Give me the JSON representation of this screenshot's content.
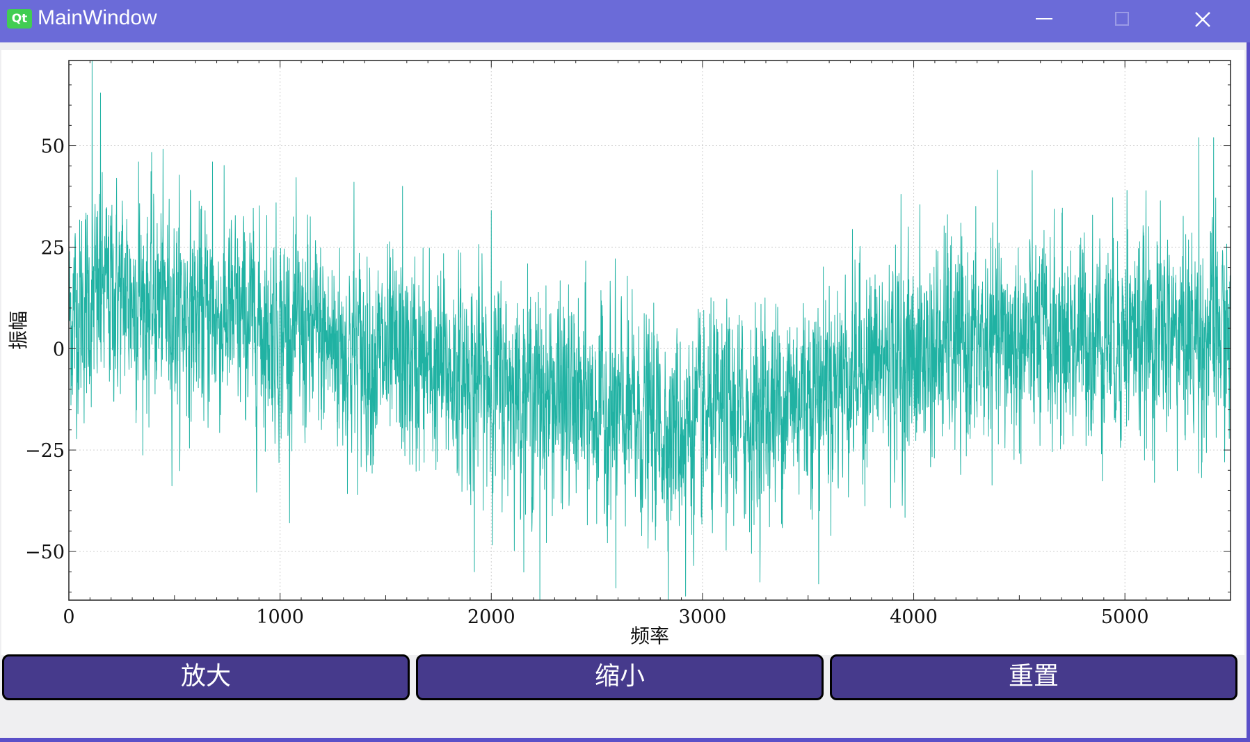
{
  "window": {
    "title": "MainWindow",
    "logo_text": "Qt"
  },
  "buttons": {
    "zoom_in": "放大",
    "zoom_out": "缩小",
    "reset": "重置"
  },
  "colors": {
    "titlebar": "#6b6bd8",
    "line": "#20b2a3",
    "button_bg": "#463a8c",
    "qt_green": "#41cd52"
  },
  "chart_data": {
    "type": "line",
    "xlabel": "频率",
    "ylabel": "振幅",
    "xlim": [
      0,
      5500
    ],
    "ylim": [
      -62,
      71
    ],
    "xticks": [
      0,
      1000,
      2000,
      3000,
      4000,
      5000
    ],
    "yticks": [
      50,
      25,
      0,
      -25,
      -50
    ],
    "ytick_labels": [
      "50",
      "25",
      "0",
      "−25",
      "−50"
    ],
    "grid": true,
    "series": [
      {
        "color": "#20b2a3",
        "n_points": 5500,
        "trend_x": [
          0,
          200,
          500,
          1000,
          1500,
          2000,
          2500,
          2850,
          3200,
          3500,
          3800,
          4200,
          4600,
          5000,
          5500
        ],
        "trend_y": [
          8,
          14,
          10,
          5,
          -3,
          -8,
          -15,
          -20,
          -17,
          -10,
          -4,
          0,
          2,
          4,
          3
        ],
        "noise_std": 13,
        "peaks": [
          {
            "x": 110,
            "y": 71
          },
          {
            "x": 150,
            "y": 63
          },
          {
            "x": 330,
            "y": 46
          },
          {
            "x": 680,
            "y": 46
          },
          {
            "x": 1350,
            "y": 41
          },
          {
            "x": 1580,
            "y": 40
          },
          {
            "x": 2000,
            "y": 34
          },
          {
            "x": 3550,
            "y": 31
          },
          {
            "x": 3940,
            "y": 38
          },
          {
            "x": 4160,
            "y": 33
          },
          {
            "x": 5010,
            "y": 39
          },
          {
            "x": 5350,
            "y": 52
          },
          {
            "x": 5420,
            "y": 52
          }
        ],
        "troughs": [
          {
            "x": 1920,
            "y": -55
          },
          {
            "x": 2230,
            "y": -62
          },
          {
            "x": 2590,
            "y": -59
          },
          {
            "x": 2920,
            "y": -61
          },
          {
            "x": 3550,
            "y": -58
          }
        ]
      }
    ]
  }
}
